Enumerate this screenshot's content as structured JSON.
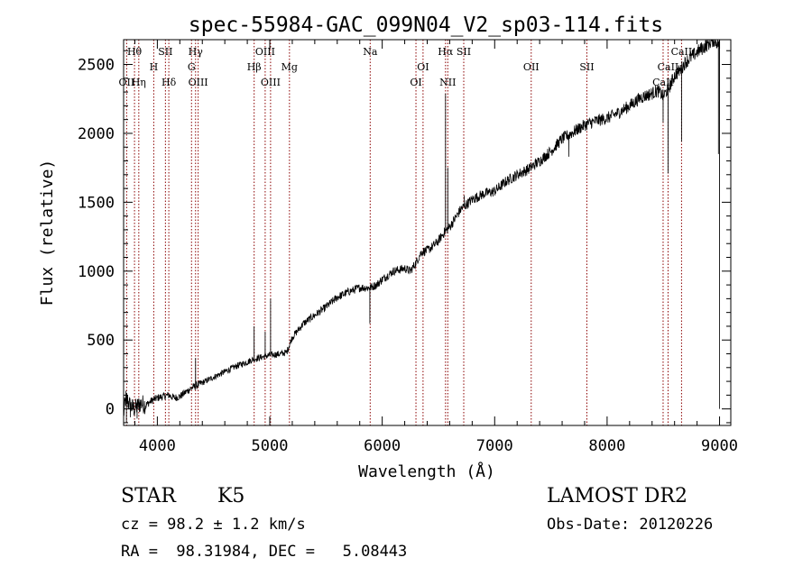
{
  "chart_data": {
    "type": "line",
    "title": "spec-55984-GAC_099N04_V2_sp03-114.fits",
    "xlabel": "Wavelength (Å)",
    "ylabel": "Flux (relative)",
    "xlim": [
      3700,
      9100
    ],
    "ylim": [
      -120,
      2680
    ],
    "xticks": [
      4000,
      5000,
      6000,
      7000,
      8000,
      9000
    ],
    "yticks": [
      0,
      500,
      1000,
      1500,
      2000,
      2500
    ],
    "grid": false,
    "line_color": "#000000",
    "marker_color": "#8b0000",
    "spectrum_anchors": {
      "x": [
        3700,
        3720,
        3760,
        3800,
        3850,
        3900,
        3950,
        4000,
        4050,
        4100,
        4150,
        4200,
        4250,
        4300,
        4350,
        4400,
        4500,
        4600,
        4700,
        4800,
        4850,
        4900,
        4950,
        5000,
        5100,
        5150,
        5200,
        5300,
        5400,
        5500,
        5600,
        5700,
        5800,
        5890,
        5950,
        6000,
        6100,
        6200,
        6250,
        6300,
        6350,
        6400,
        6450,
        6500,
        6550,
        6600,
        6700,
        6800,
        6900,
        7000,
        7100,
        7200,
        7300,
        7400,
        7500,
        7600,
        7700,
        7800,
        7900,
        8000,
        8100,
        8200,
        8300,
        8400,
        8450,
        8500,
        8550,
        8600,
        8650,
        8700,
        8800,
        8900,
        8950,
        8990
      ],
      "y": [
        -40,
        80,
        20,
        0,
        40,
        30,
        60,
        80,
        90,
        100,
        80,
        90,
        120,
        150,
        170,
        190,
        230,
        270,
        310,
        340,
        360,
        370,
        380,
        390,
        400,
        410,
        520,
        620,
        680,
        740,
        810,
        850,
        880,
        880,
        900,
        940,
        1000,
        1020,
        1000,
        1060,
        1140,
        1150,
        1180,
        1220,
        1280,
        1320,
        1450,
        1520,
        1560,
        1580,
        1650,
        1700,
        1740,
        1800,
        1870,
        1960,
        2010,
        2060,
        2090,
        2110,
        2150,
        2200,
        2260,
        2290,
        2310,
        2270,
        2330,
        2420,
        2460,
        2520,
        2590,
        2650,
        2680,
        2650
      ]
    },
    "spectrum_features": [
      {
        "x": 3725,
        "y": -100
      },
      {
        "x": 3760,
        "y": -60
      },
      {
        "x": 3820,
        "y": -70
      },
      {
        "x": 4100,
        "y": 110
      },
      {
        "x": 4340,
        "y": 370
      },
      {
        "x": 4861,
        "y": 600
      },
      {
        "x": 4959,
        "y": 560
      },
      {
        "x": 5007,
        "y": 800
      },
      {
        "x": 5890,
        "y": 620
      },
      {
        "x": 6563,
        "y": 2290
      },
      {
        "x": 6583,
        "y": 1750
      },
      {
        "x": 6730,
        "y": 1550
      },
      {
        "x": 7660,
        "y": 1830
      },
      {
        "x": 8498,
        "y": 2080
      },
      {
        "x": 8542,
        "y": 1710
      },
      {
        "x": 8662,
        "y": 1940
      },
      {
        "x": 8990,
        "y": 1850
      },
      {
        "x": 9000,
        "y": 0
      }
    ],
    "line_markers": [
      {
        "label": "Hθ",
        "x": 3797,
        "row": 0
      },
      {
        "label": "Hη",
        "x": 3835,
        "row": 2
      },
      {
        "label": "OII",
        "x": 3727,
        "row": 2
      },
      {
        "label": "H",
        "x": 3968,
        "row": 1
      },
      {
        "label": "SII",
        "x": 4072,
        "row": 0
      },
      {
        "label": "Hδ",
        "x": 4102,
        "row": 2
      },
      {
        "label": "Hγ",
        "x": 4340,
        "row": 0
      },
      {
        "label": "G",
        "x": 4304,
        "row": 1
      },
      {
        "label": "OIII",
        "x": 4363,
        "row": 2
      },
      {
        "label": "OIII",
        "x": 4959,
        "row": 0
      },
      {
        "label": "Hβ",
        "x": 4861,
        "row": 1
      },
      {
        "label": "OIII",
        "x": 5007,
        "row": 2
      },
      {
        "label": "Mg",
        "x": 5175,
        "row": 1
      },
      {
        "label": "Na",
        "x": 5893,
        "row": 0
      },
      {
        "label": "OI",
        "x": 6363,
        "row": 1
      },
      {
        "label": "OI",
        "x": 6300,
        "row": 2
      },
      {
        "label": "Hα",
        "x": 6563,
        "row": 0
      },
      {
        "label": "SII",
        "x": 6725,
        "row": 0
      },
      {
        "label": "NII",
        "x": 6583,
        "row": 2
      },
      {
        "label": "OII",
        "x": 7325,
        "row": 1
      },
      {
        "label": "SII",
        "x": 7820,
        "row": 1
      },
      {
        "label": "CaII",
        "x": 8662,
        "row": 0
      },
      {
        "label": "CaII",
        "x": 8542,
        "row": 1
      },
      {
        "label": "CaII",
        "x": 8498,
        "row": 2
      }
    ]
  },
  "info": {
    "object_class": "STAR",
    "subclass": "K5",
    "survey": "LAMOST DR2",
    "redshift": "cz = 98.2 ± 1.2 km/s",
    "obs_date": "Obs-Date: 20120226",
    "coords": "RA =  98.31984, DEC =   5.08443"
  }
}
